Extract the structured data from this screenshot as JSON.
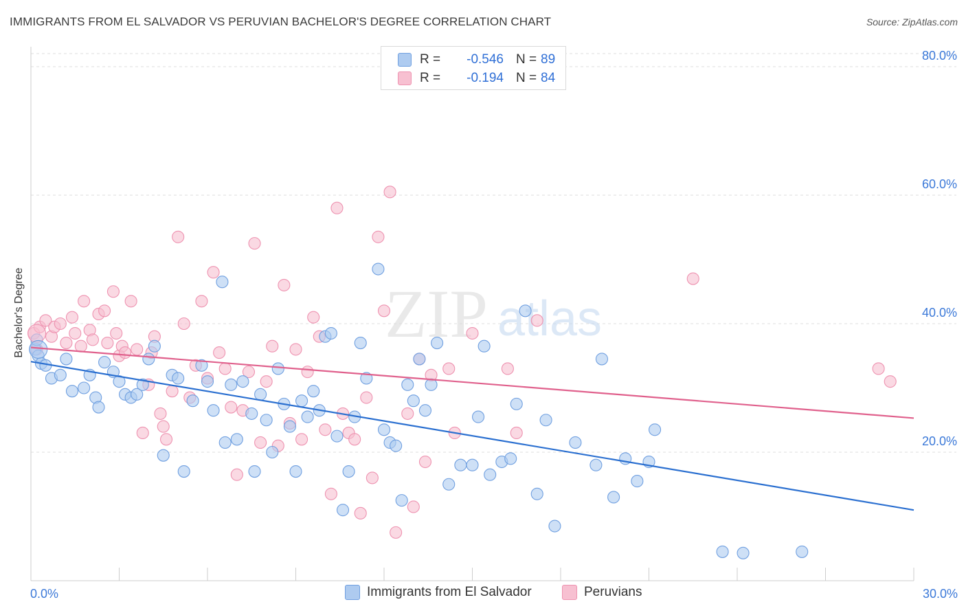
{
  "title": "IMMIGRANTS FROM EL SALVADOR VS PERUVIAN BACHELOR'S DEGREE CORRELATION CHART",
  "source": "Source: ZipAtlas.com",
  "watermark": {
    "zip": "ZIP",
    "atlas": "atlas"
  },
  "legend": [
    {
      "r_label": "R =",
      "r_value": "-0.546",
      "n_label": "N =",
      "n_value": "89"
    },
    {
      "r_label": "R =",
      "r_value": "-0.194",
      "n_label": "N =",
      "n_value": "84"
    }
  ],
  "colors": {
    "blue_fill": "#aecbf0",
    "blue_stroke": "#6f9fe0",
    "blue_line": "#2a6fd0",
    "pink_fill": "#f7c0d1",
    "pink_stroke": "#ee92b0",
    "pink_line": "#e0608c",
    "tick_label": "#3a78d8",
    "grid": "#dcdcdc"
  },
  "chart_data": {
    "type": "scatter",
    "ylabel": "Bachelor's Degree",
    "xlim": [
      0,
      30
    ],
    "ylim": [
      0,
      80
    ],
    "x_tick_labels": [
      {
        "v": 0,
        "label": "0.0%"
      },
      {
        "v": 30,
        "label": "30.0%"
      }
    ],
    "y_ticks": [
      {
        "v": 20,
        "label": "20.0%"
      },
      {
        "v": 40,
        "label": "40.0%"
      },
      {
        "v": 60,
        "label": "60.0%"
      },
      {
        "v": 80,
        "label": "80.0%"
      }
    ],
    "series": [
      {
        "name": "Immigrants from El Salvador",
        "trend": [
          [
            0,
            34.1
          ],
          [
            30,
            11.0
          ]
        ],
        "points": [
          [
            0.15,
            36.0
          ],
          [
            0.2,
            37.5
          ],
          [
            0.25,
            35.0
          ],
          [
            0.35,
            33.8
          ],
          [
            0.5,
            33.5
          ],
          [
            0.7,
            31.5
          ],
          [
            1.0,
            32.0
          ],
          [
            1.2,
            34.5
          ],
          [
            1.4,
            29.5
          ],
          [
            1.8,
            30.0
          ],
          [
            2.0,
            32.0
          ],
          [
            2.2,
            28.5
          ],
          [
            2.3,
            27.0
          ],
          [
            2.5,
            34.0
          ],
          [
            2.8,
            32.5
          ],
          [
            3.0,
            31.0
          ],
          [
            3.2,
            29.0
          ],
          [
            3.4,
            28.5
          ],
          [
            3.6,
            29.0
          ],
          [
            3.8,
            30.5
          ],
          [
            4.0,
            34.5
          ],
          [
            4.2,
            36.5
          ],
          [
            4.5,
            19.5
          ],
          [
            4.8,
            32.0
          ],
          [
            5.0,
            31.5
          ],
          [
            5.2,
            17.0
          ],
          [
            5.5,
            28.0
          ],
          [
            5.8,
            33.5
          ],
          [
            6.0,
            31.0
          ],
          [
            6.2,
            26.5
          ],
          [
            6.5,
            46.5
          ],
          [
            6.6,
            21.5
          ],
          [
            6.8,
            30.5
          ],
          [
            7.0,
            22.0
          ],
          [
            7.2,
            31.0
          ],
          [
            7.5,
            26.0
          ],
          [
            7.6,
            17.0
          ],
          [
            7.8,
            29.0
          ],
          [
            8.0,
            25.0
          ],
          [
            8.2,
            20.0
          ],
          [
            8.4,
            33.0
          ],
          [
            8.6,
            27.5
          ],
          [
            8.8,
            24.0
          ],
          [
            9.0,
            17.0
          ],
          [
            9.2,
            28.0
          ],
          [
            9.4,
            25.5
          ],
          [
            9.6,
            29.5
          ],
          [
            9.8,
            26.5
          ],
          [
            10.0,
            38.0
          ],
          [
            10.2,
            38.5
          ],
          [
            10.4,
            22.5
          ],
          [
            10.6,
            11.0
          ],
          [
            10.8,
            17.0
          ],
          [
            11.0,
            25.5
          ],
          [
            11.2,
            37.0
          ],
          [
            11.4,
            31.5
          ],
          [
            11.8,
            48.5
          ],
          [
            12.0,
            23.5
          ],
          [
            12.2,
            21.5
          ],
          [
            12.4,
            21.0
          ],
          [
            12.6,
            12.5
          ],
          [
            12.8,
            30.5
          ],
          [
            13.0,
            28.0
          ],
          [
            13.2,
            34.5
          ],
          [
            13.4,
            26.5
          ],
          [
            13.6,
            30.5
          ],
          [
            13.8,
            37.0
          ],
          [
            14.2,
            15.0
          ],
          [
            14.6,
            18.0
          ],
          [
            15.0,
            18.0
          ],
          [
            15.2,
            25.5
          ],
          [
            15.4,
            36.5
          ],
          [
            15.6,
            16.5
          ],
          [
            16.0,
            18.5
          ],
          [
            16.3,
            19.0
          ],
          [
            16.5,
            27.5
          ],
          [
            16.8,
            42.0
          ],
          [
            17.2,
            13.5
          ],
          [
            17.5,
            25.0
          ],
          [
            17.8,
            8.5
          ],
          [
            18.5,
            21.5
          ],
          [
            19.2,
            18.0
          ],
          [
            19.4,
            34.5
          ],
          [
            19.8,
            13.0
          ],
          [
            20.2,
            19.0
          ],
          [
            20.6,
            15.5
          ],
          [
            21.0,
            18.5
          ],
          [
            21.2,
            23.5
          ],
          [
            23.5,
            4.5
          ],
          [
            24.2,
            4.3
          ],
          [
            26.2,
            4.5
          ]
        ]
      },
      {
        "name": "Peruvians",
        "trend": [
          [
            0,
            36.3
          ],
          [
            30,
            25.3
          ]
        ],
        "points": [
          [
            0.1,
            38.5
          ],
          [
            0.2,
            36.0
          ],
          [
            0.3,
            39.5
          ],
          [
            0.5,
            40.5
          ],
          [
            0.7,
            38.0
          ],
          [
            0.8,
            39.5
          ],
          [
            1.0,
            40.0
          ],
          [
            1.2,
            37.0
          ],
          [
            1.4,
            41.0
          ],
          [
            1.5,
            38.5
          ],
          [
            1.7,
            36.5
          ],
          [
            1.8,
            43.5
          ],
          [
            2.0,
            39.0
          ],
          [
            2.1,
            37.5
          ],
          [
            2.3,
            41.5
          ],
          [
            2.5,
            42.0
          ],
          [
            2.6,
            37.0
          ],
          [
            2.8,
            45.0
          ],
          [
            2.9,
            38.5
          ],
          [
            3.0,
            35.0
          ],
          [
            3.1,
            36.5
          ],
          [
            3.2,
            35.5
          ],
          [
            3.4,
            43.5
          ],
          [
            3.6,
            36.0
          ],
          [
            3.8,
            23.0
          ],
          [
            4.0,
            30.5
          ],
          [
            4.1,
            35.5
          ],
          [
            4.2,
            38.0
          ],
          [
            4.4,
            26.0
          ],
          [
            4.5,
            24.0
          ],
          [
            4.6,
            22.0
          ],
          [
            4.8,
            29.5
          ],
          [
            5.0,
            53.5
          ],
          [
            5.2,
            40.0
          ],
          [
            5.4,
            28.5
          ],
          [
            5.6,
            33.5
          ],
          [
            5.8,
            43.5
          ],
          [
            6.0,
            31.5
          ],
          [
            6.2,
            48.0
          ],
          [
            6.4,
            35.5
          ],
          [
            6.6,
            33.0
          ],
          [
            6.8,
            27.0
          ],
          [
            7.0,
            16.5
          ],
          [
            7.2,
            26.5
          ],
          [
            7.4,
            32.5
          ],
          [
            7.6,
            52.5
          ],
          [
            7.8,
            21.5
          ],
          [
            8.0,
            31.0
          ],
          [
            8.2,
            36.5
          ],
          [
            8.4,
            21.0
          ],
          [
            8.6,
            46.0
          ],
          [
            8.8,
            24.5
          ],
          [
            9.0,
            36.0
          ],
          [
            9.2,
            22.0
          ],
          [
            9.4,
            32.5
          ],
          [
            9.6,
            41.0
          ],
          [
            9.8,
            38.0
          ],
          [
            10.0,
            23.5
          ],
          [
            10.2,
            13.5
          ],
          [
            10.4,
            58.0
          ],
          [
            10.6,
            26.0
          ],
          [
            10.8,
            23.0
          ],
          [
            11.0,
            22.0
          ],
          [
            11.2,
            10.5
          ],
          [
            11.4,
            28.5
          ],
          [
            11.6,
            16.0
          ],
          [
            11.8,
            53.5
          ],
          [
            12.0,
            42.0
          ],
          [
            12.2,
            60.5
          ],
          [
            12.4,
            7.5
          ],
          [
            12.8,
            26.0
          ],
          [
            13.0,
            11.5
          ],
          [
            13.2,
            34.5
          ],
          [
            13.4,
            18.5
          ],
          [
            13.6,
            32.0
          ],
          [
            14.2,
            33.0
          ],
          [
            14.4,
            23.0
          ],
          [
            15.0,
            38.5
          ],
          [
            16.2,
            33.0
          ],
          [
            16.5,
            23.0
          ],
          [
            17.2,
            40.5
          ],
          [
            22.5,
            47.0
          ],
          [
            28.8,
            33.0
          ],
          [
            29.2,
            31.0
          ]
        ]
      }
    ]
  },
  "bottom_legend": [
    "Immigrants from El Salvador",
    "Peruvians"
  ]
}
